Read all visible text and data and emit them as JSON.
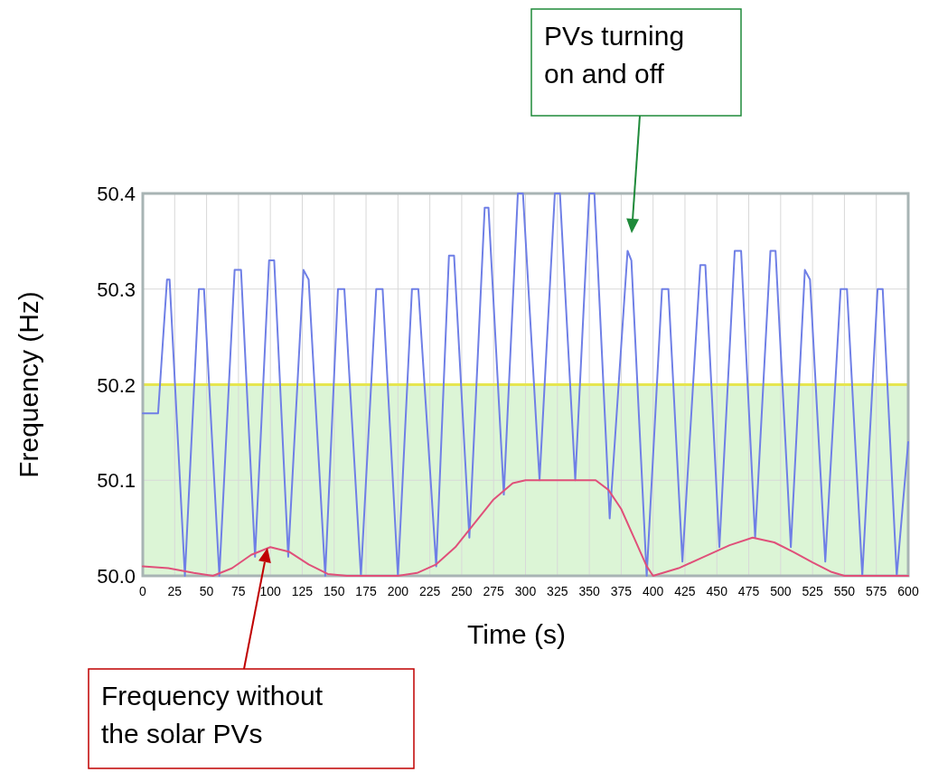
{
  "chart_data": {
    "type": "line",
    "xlabel": "Time (s)",
    "ylabel": "Frequency (Hz)",
    "xlim": [
      0,
      600
    ],
    "xticks": [
      0,
      25,
      50,
      75,
      100,
      125,
      150,
      175,
      200,
      225,
      250,
      275,
      300,
      325,
      350,
      375,
      400,
      425,
      450,
      475,
      500,
      525,
      550,
      575,
      600
    ],
    "ylim": [
      50.0,
      50.4
    ],
    "yticks": [
      {
        "value": 50.0,
        "label": "50.0"
      },
      50.1,
      50.2,
      50.3,
      50.4
    ],
    "grid": true,
    "marker": "none",
    "line_style": "solid",
    "bands": [
      {
        "axis": "y",
        "from": 50.0,
        "to": 50.2,
        "color": "#dcf5d6"
      }
    ],
    "ref_lines": [
      {
        "axis": "y",
        "value": 50.2,
        "color": "#e6e650"
      }
    ],
    "series": [
      {
        "color": "#6f7fe6",
        "x": [
          0,
          12,
          19,
          21,
          33,
          44,
          48,
          60,
          72,
          77,
          88,
          99,
          103,
          114,
          126,
          130,
          143,
          153,
          158,
          171,
          183,
          188,
          200,
          211,
          216,
          230,
          240,
          244,
          256,
          268,
          271,
          283,
          294,
          298,
          311,
          323,
          327,
          339,
          350,
          354,
          366,
          380,
          383,
          395,
          407,
          412,
          423,
          437,
          441,
          452,
          464,
          469,
          480,
          492,
          496,
          508,
          519,
          523,
          535,
          547,
          552,
          564,
          576,
          580,
          591,
          600
        ],
        "values": [
          50.17,
          50.17,
          50.31,
          50.31,
          50.0,
          50.3,
          50.3,
          50.0,
          50.32,
          50.32,
          50.02,
          50.33,
          50.33,
          50.02,
          50.32,
          50.31,
          50.0,
          50.3,
          50.3,
          50.0,
          50.3,
          50.3,
          50.0,
          50.3,
          50.3,
          50.01,
          50.335,
          50.335,
          50.04,
          50.385,
          50.385,
          50.085,
          50.4,
          50.4,
          50.1,
          50.4,
          50.4,
          50.1,
          50.4,
          50.4,
          50.06,
          50.34,
          50.33,
          50.0,
          50.3,
          50.3,
          50.015,
          50.325,
          50.325,
          50.03,
          50.34,
          50.34,
          50.04,
          50.34,
          50.34,
          50.03,
          50.32,
          50.31,
          50.015,
          50.3,
          50.3,
          50.0,
          50.3,
          50.3,
          50.0,
          50.14
        ]
      },
      {
        "color": "#e0507a",
        "x": [
          0,
          20,
          40,
          55,
          70,
          85,
          100,
          115,
          130,
          145,
          160,
          200,
          215,
          230,
          245,
          260,
          275,
          290,
          300,
          355,
          365,
          375,
          385,
          395,
          400,
          420,
          440,
          460,
          478,
          495,
          510,
          525,
          540,
          550,
          600
        ],
        "values": [
          50.01,
          50.008,
          50.003,
          50.0,
          50.008,
          50.022,
          50.03,
          50.025,
          50.012,
          50.002,
          50.0,
          50.0,
          50.003,
          50.012,
          50.03,
          50.055,
          50.08,
          50.097,
          50.1,
          50.1,
          50.09,
          50.07,
          50.04,
          50.01,
          50.0,
          50.008,
          50.02,
          50.032,
          50.04,
          50.035,
          50.025,
          50.014,
          50.004,
          50.0,
          50.0
        ]
      }
    ],
    "annotations": [
      "PVs turning on and off",
      "Frequency without the solar PVs"
    ]
  }
}
